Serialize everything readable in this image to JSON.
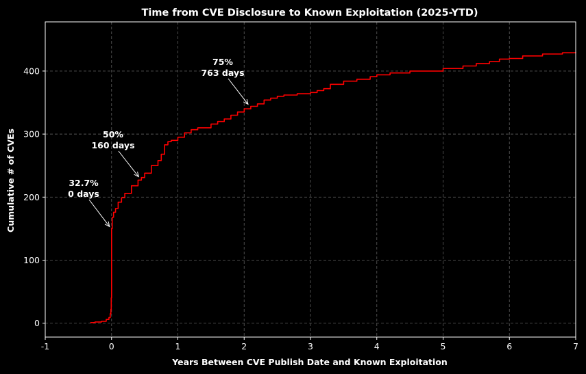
{
  "colors": {
    "background": "#000000",
    "line": "#ff0000",
    "text": "#ffffff",
    "grid": "#555555"
  },
  "chart_data": {
    "type": "line",
    "title": "Time from CVE Disclosure to Known Exploitation (2025-YTD)",
    "xlabel": "Years Between CVE Publish Date and Known Exploitation",
    "ylabel": "Cumulative # of CVEs",
    "xlim": [
      -1,
      7
    ],
    "ylim": [
      -22,
      478
    ],
    "xticks": [
      -1,
      0,
      1,
      2,
      3,
      4,
      5,
      6,
      7
    ],
    "xtick_labels": [
      "-1",
      "0",
      "1",
      "2",
      "3",
      "4",
      "5",
      "6",
      "7"
    ],
    "yticks": [
      0,
      100,
      200,
      300,
      400
    ],
    "ytick_labels": [
      "0",
      "100",
      "200",
      "300",
      "400"
    ],
    "grid": true,
    "series": [
      {
        "name": "Cumulative CVEs",
        "x": [
          -0.32,
          -0.25,
          -0.15,
          -0.08,
          -0.04,
          -0.02,
          -0.01,
          -0.005,
          0.0,
          0.0,
          0.01,
          0.03,
          0.06,
          0.1,
          0.15,
          0.2,
          0.3,
          0.4,
          0.45,
          0.5,
          0.6,
          0.7,
          0.75,
          0.8,
          0.85,
          0.9,
          1.0,
          1.1,
          1.2,
          1.3,
          1.5,
          1.6,
          1.7,
          1.8,
          1.9,
          2.0,
          2.1,
          2.2,
          2.3,
          2.4,
          2.5,
          2.6,
          2.8,
          3.0,
          3.1,
          3.2,
          3.3,
          3.5,
          3.7,
          3.9,
          4.0,
          4.2,
          4.5,
          5.0,
          5.3,
          5.5,
          5.7,
          5.85,
          6.0,
          6.2,
          6.5,
          6.8,
          7.0
        ],
        "y": [
          1,
          2,
          3,
          6,
          9,
          15,
          22,
          40,
          100,
          150,
          168,
          176,
          182,
          192,
          199,
          206,
          218,
          227,
          231,
          238,
          250,
          258,
          268,
          283,
          288,
          290,
          295,
          302,
          307,
          310,
          316,
          320,
          324,
          330,
          335,
          340,
          344,
          348,
          354,
          357,
          360,
          362,
          364,
          366,
          369,
          372,
          379,
          384,
          387,
          391,
          394,
          397,
          400,
          404,
          408,
          412,
          415,
          419,
          420,
          424,
          427,
          429,
          430
        ]
      }
    ],
    "annotations": [
      {
        "line1": "32.7%",
        "line2": "0 days",
        "x": 0.0,
        "y": 150
      },
      {
        "line1": "50%",
        "line2": "160 days",
        "x": 0.44,
        "y": 229
      },
      {
        "line1": "75%",
        "line2": "763 days",
        "x": 2.09,
        "y": 344
      }
    ]
  }
}
